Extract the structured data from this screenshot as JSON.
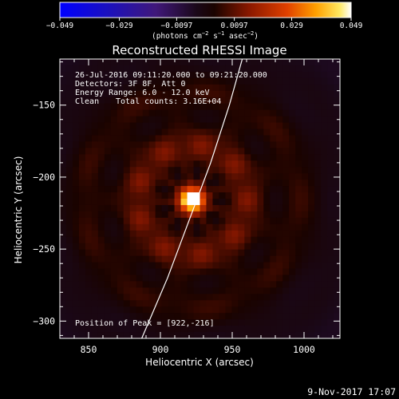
{
  "chart_data": {
    "type": "heatmap",
    "title": "Reconstructed RHESSI Image",
    "xlabel": "Heliocentric X (arcsec)",
    "ylabel": "Heliocentric Y (arcsec)",
    "xlim": [
      830,
      1025
    ],
    "ylim": [
      -312,
      -118
    ],
    "x_ticks": [
      850,
      900,
      950,
      1000
    ],
    "y_ticks": [
      -150,
      -200,
      -250,
      -300
    ],
    "colorbar": {
      "colormap": "bluered-hot",
      "range": [
        -0.049,
        0.049
      ],
      "ticks": [
        {
          "value": -0.049,
          "label": "−0.049"
        },
        {
          "value": -0.029,
          "label": "−0.029"
        },
        {
          "value": -0.0097,
          "label": "−0.0097"
        },
        {
          "value": 0.0097,
          "label": "0.0097"
        },
        {
          "value": 0.029,
          "label": "0.029"
        },
        {
          "value": 0.049,
          "label": "0.049"
        }
      ],
      "unit_label_main": "(photons cm",
      "unit_exp1": "−2",
      "unit_mid": " s",
      "unit_exp2": "−1",
      "unit_mid2": " asec",
      "unit_exp3": "−2",
      "unit_end": ")"
    },
    "annotations": {
      "time_range": "26-Jul-2016 09:11:20.000 to 09:21:20.000",
      "detectors": "Detectors: 3F 8F, Att 0",
      "energy_range": "Energy Range: 6.0 - 12.0 keV",
      "method": "Clean",
      "total_counts": "Total counts: 3.16E+04",
      "peak_position": "Position of Peak = [922,-216]"
    },
    "source": {
      "peak_x": 922,
      "peak_y": -216,
      "peak_value": 0.049,
      "halo_radius_arcsec": 80
    },
    "limb_curve": [
      [
        887,
        -312
      ],
      [
        905,
        -270
      ],
      [
        920,
        -230
      ],
      [
        935,
        -190
      ],
      [
        948,
        -150
      ],
      [
        957,
        -118
      ]
    ],
    "date_stamp": "9-Nov-2017 17:07"
  }
}
